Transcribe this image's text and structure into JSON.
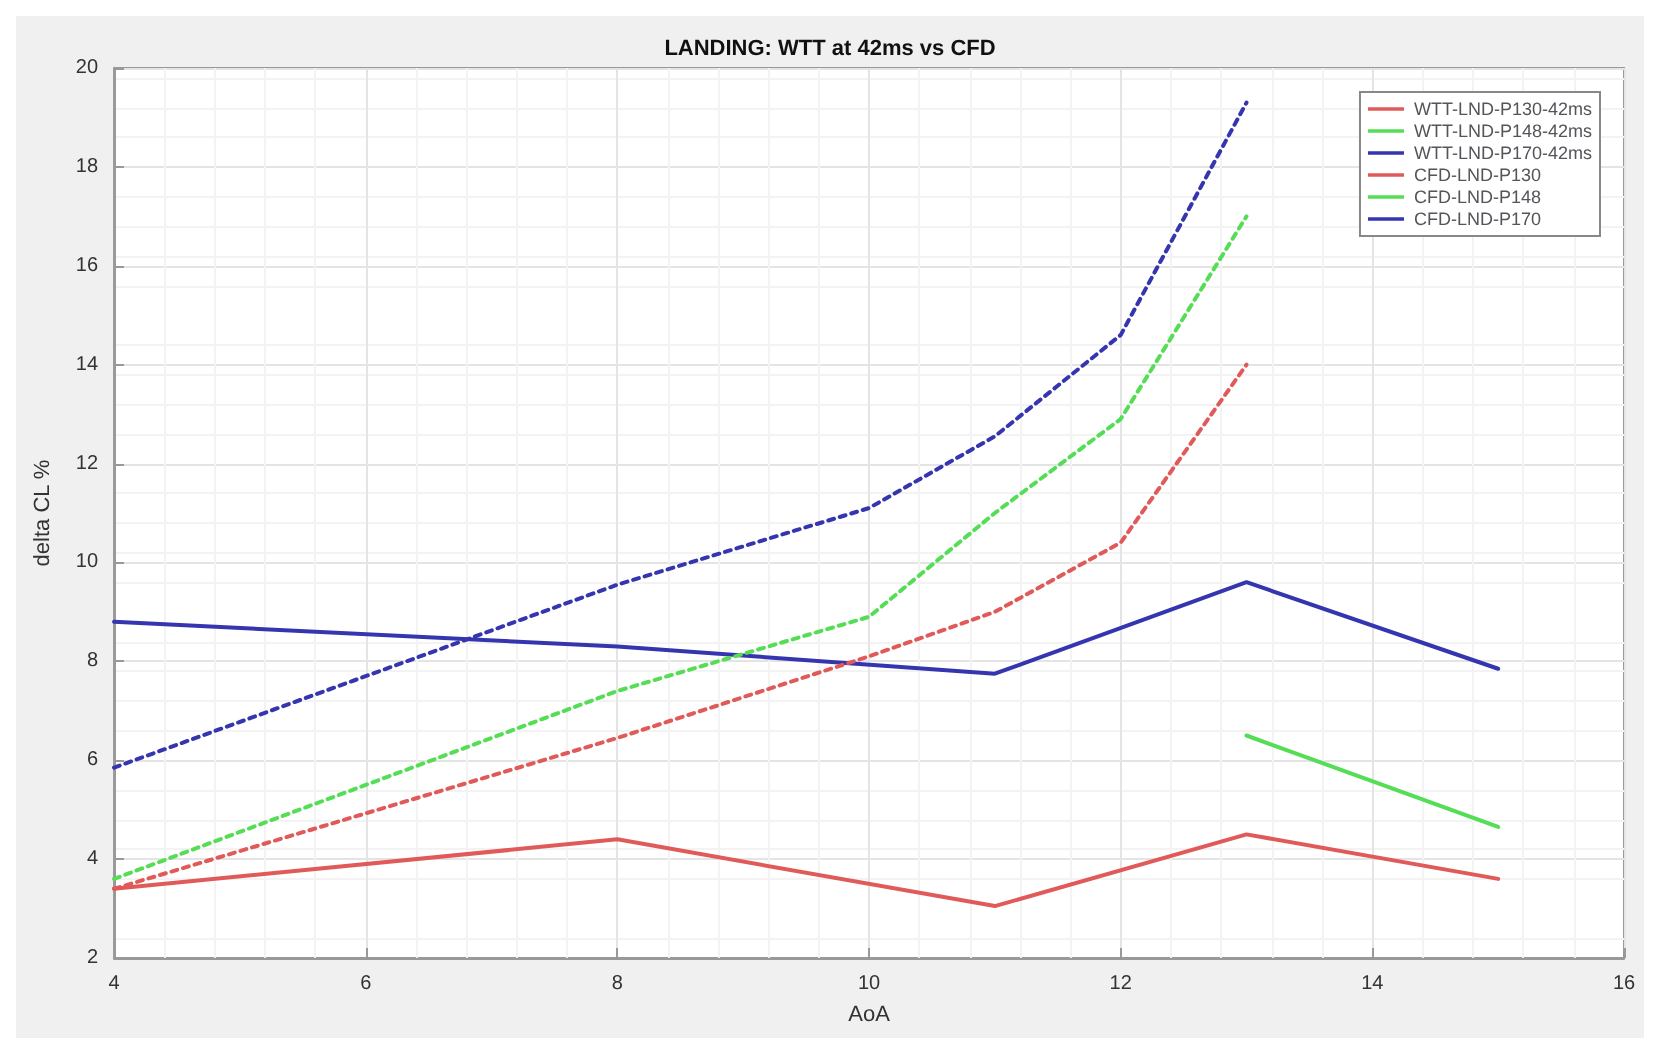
{
  "chart_data": {
    "type": "line",
    "title": "LANDING: WTT at 42ms vs CFD",
    "xlabel": "AoA",
    "ylabel": "delta CL %",
    "xlim": [
      4,
      16
    ],
    "xticks": [
      4,
      6,
      8,
      10,
      12,
      14,
      16
    ],
    "ylim": [
      2,
      20
    ],
    "yticks": [
      2,
      4,
      6,
      8,
      10,
      12,
      14,
      16,
      18,
      20
    ],
    "grid": true,
    "legend": "top right",
    "marker": "none",
    "series": [
      {
        "name": "WTT-LND-P130-42ms",
        "color": "#e05a5a",
        "line_style": "solid",
        "x": [
          4,
          8,
          11,
          13,
          15
        ],
        "values": [
          3.4,
          4.4,
          3.05,
          4.5,
          3.6
        ]
      },
      {
        "name": "WTT-LND-P148-42ms",
        "color": "#55dd55",
        "line_style": "solid",
        "x": [
          13,
          15
        ],
        "values": [
          6.5,
          4.65
        ]
      },
      {
        "name": "WTT-LND-P170-42ms",
        "color": "#3535b0",
        "line_style": "solid",
        "x": [
          4,
          8,
          11,
          13,
          15
        ],
        "values": [
          8.8,
          8.3,
          7.75,
          9.6,
          7.85
        ]
      },
      {
        "name": "CFD-LND-P130",
        "color": "#e05a5a",
        "line_style": "dotted",
        "x": [
          4,
          8,
          10,
          11,
          12,
          13
        ],
        "values": [
          3.4,
          6.45,
          8.1,
          9.0,
          10.4,
          14.0
        ]
      },
      {
        "name": "CFD-LND-P148",
        "color": "#55dd55",
        "line_style": "dotted",
        "x": [
          4,
          8,
          10,
          11,
          12,
          13
        ],
        "values": [
          3.6,
          7.4,
          8.9,
          11.0,
          12.9,
          17.0
        ]
      },
      {
        "name": "CFD-LND-P170",
        "color": "#3535b0",
        "line_style": "dotted",
        "x": [
          4,
          8,
          10,
          11,
          12,
          13
        ],
        "values": [
          5.85,
          9.55,
          11.1,
          12.55,
          14.6,
          19.3
        ]
      }
    ]
  }
}
